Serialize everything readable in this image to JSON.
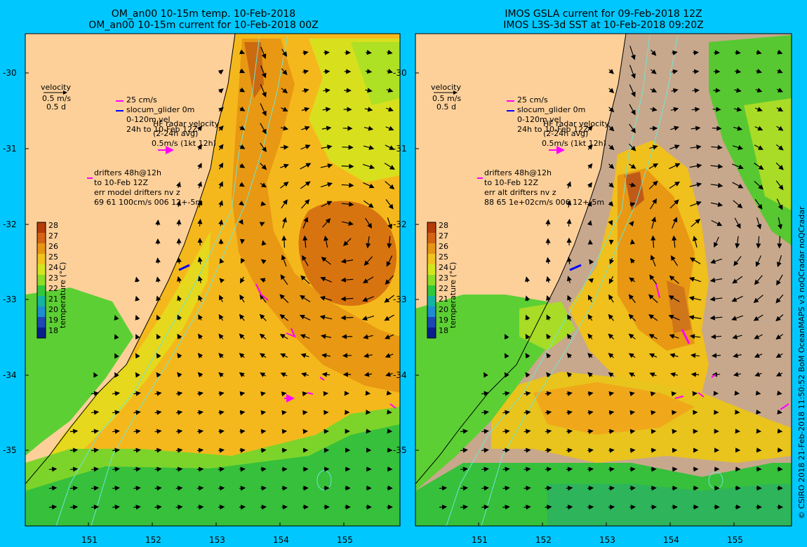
{
  "panels": [
    {
      "id": "model",
      "title_line1": "OM_an00 10-15m temp. 10-Feb-2018",
      "title_line2": "OM_an00 10-15m current for 10-Feb-2018 00Z",
      "legend": {
        "velocity": "velocity",
        "speed": "0.5 m/s",
        "duration": "0.5 d",
        "cm": "25 cm/s",
        "glider": "slocum_glider 0m",
        "glider_vel": "0-120m vel",
        "glider_time": "24h to 10-Feb 12Z",
        "radar": "HF radar velocity",
        "radar_avg": "(2-24h avg)",
        "radar_speed": "0.5m/s (1kt 12h)",
        "drifters": "drifters 48h@12h",
        "drifters_to": "to 10-Feb 12Z",
        "err_hdr": "err model drifters nv z",
        "err_vals": "69 61 100cm/s 006 12+-5m"
      }
    },
    {
      "id": "obs",
      "title_line1": "IMOS GSLA current for 09-Feb-2018 12Z",
      "title_line2": "IMOS L3S-3d SST at 10-Feb-2018 09:20Z",
      "legend": {
        "velocity": "velocity",
        "speed": "0.5 m/s",
        "duration": "0.5 d",
        "cm": "25 cm/s",
        "glider": "slocum_glider 0m",
        "glider_vel": "0-120m vel",
        "glider_time": "24h to 10-Feb 12Z",
        "radar": "HF radar velocity",
        "radar_avg": "(2-24h avg)",
        "radar_speed": "0.5m/s (1kt 12h)",
        "drifters": "drifters 48h@12h",
        "drifters_to": "to 10-Feb 12Z",
        "err_hdr": "err alt drifters nv z",
        "err_vals": "88 65 1e+02cm/s 006 12+-5m"
      }
    }
  ],
  "colorbar": {
    "label": "temperature (°C)",
    "ticks": [
      "28",
      "27",
      "26",
      "25",
      "24",
      "23",
      "22",
      "21",
      "20",
      "19",
      "18"
    ],
    "colors": [
      "#b43c0a",
      "#d26414",
      "#e69614",
      "#f0c31e",
      "#d2e61e",
      "#8cdc28",
      "#32c83c",
      "#14b4a0",
      "#1e8cd2",
      "#1e46b4",
      "#0a1e8c"
    ]
  },
  "axes": {
    "lat_ticks": [
      "-30",
      "-31",
      "-32",
      "-33",
      "-34",
      "-35"
    ],
    "lon_ticks": [
      "151",
      "152",
      "153",
      "154",
      "155"
    ]
  },
  "credit": "© CSIRO 2018   21-Feb-2018 11:50:52 BoM OceanMAPS v3 noQCradar noQCradar",
  "colors": {
    "background": "#00c8ff",
    "land": "#fdd09a",
    "no_data": "#c8a88c",
    "contour": "#6ee6d2",
    "marker": "#ff00ff",
    "glider": "#0000ff"
  }
}
